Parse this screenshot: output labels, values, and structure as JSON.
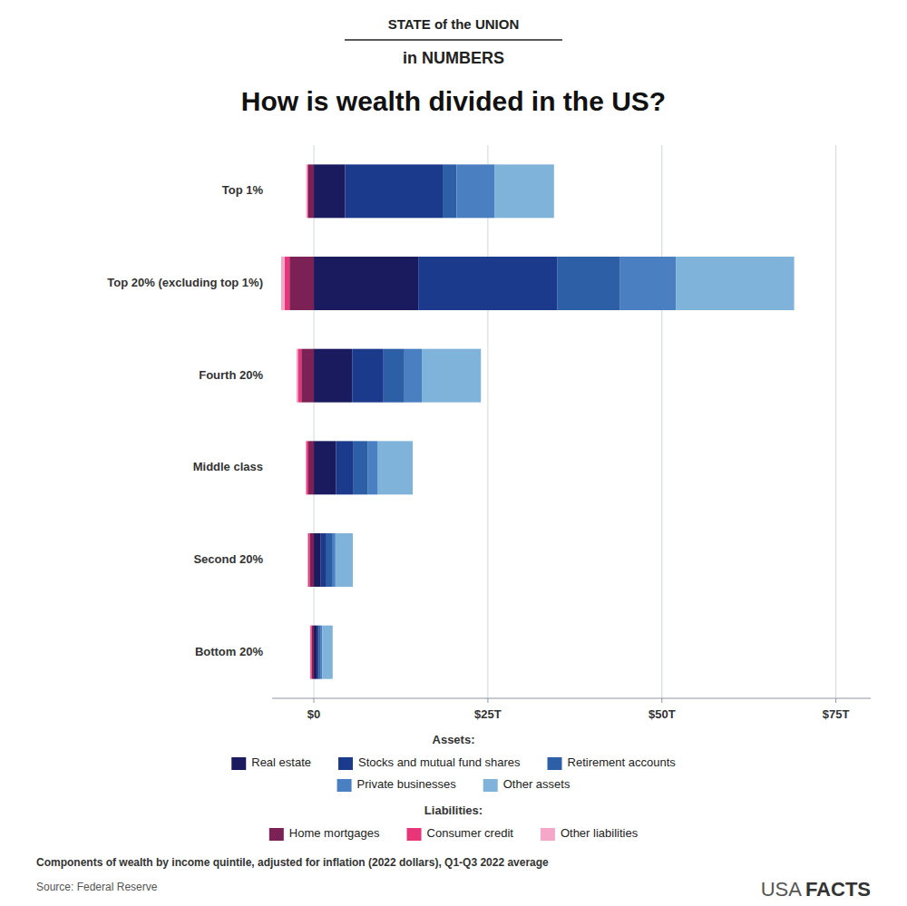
{
  "chart_data": {
    "type": "bar",
    "orientation": "horizontal",
    "stacked": true,
    "grid": true,
    "legend": "bottom",
    "title": "How is wealth divided in the US?",
    "subtitle": "Components of wealth by income quintile, adjusted for inflation (2022 dollars), Q1-Q3 2022 average",
    "annotations": [
      "STATE of the UNION",
      "in NUMBERS",
      "Assets:",
      "Liabilities:",
      "Source: Federal Reserve",
      "USA",
      "FACTS"
    ],
    "categories": [
      "Top 1%",
      "Top 20% (excluding top 1%)",
      "Fourth 20%",
      "Middle class",
      "Second 20%",
      "Bottom 20%"
    ],
    "xlim": [
      -6,
      80
    ],
    "xticks": [
      {
        "value": 0,
        "label": "$0"
      },
      {
        "value": 25,
        "label": "$25T"
      },
      {
        "value": 50,
        "label": "$50T"
      },
      {
        "value": 75,
        "label": "$75T"
      }
    ],
    "series": [
      {
        "name": "Real estate",
        "color": "#1a1a5e",
        "values": [
          4.5,
          15.0,
          5.5,
          3.2,
          1.0,
          0.4
        ]
      },
      {
        "name": "Stocks and mutual fund shares",
        "color": "#1b3a8c",
        "values": [
          14.0,
          20.0,
          4.5,
          2.5,
          0.8,
          0.3
        ]
      },
      {
        "name": "Retirement accounts",
        "color": "#2d5fa6",
        "values": [
          2.0,
          9.0,
          3.0,
          2.0,
          0.8,
          0.3
        ]
      },
      {
        "name": "Private businesses",
        "color": "#4a7fc1",
        "values": [
          5.5,
          8.0,
          2.5,
          1.5,
          0.5,
          0.2
        ]
      },
      {
        "name": "Other assets",
        "color": "#7fb3d9",
        "values": [
          8.5,
          17.0,
          8.5,
          5.0,
          2.5,
          1.5
        ]
      },
      {
        "name": "Home mortgages",
        "color": "#7b2155",
        "values": [
          -0.8,
          -3.5,
          -1.8,
          -0.8,
          -0.6,
          -0.3
        ]
      },
      {
        "name": "Consumer credit",
        "color": "#e8357a",
        "values": [
          -0.15,
          -0.7,
          -0.5,
          -0.3,
          -0.25,
          -0.2
        ]
      },
      {
        "name": "Other liabilities",
        "color": "#f4a7c7",
        "values": [
          -0.15,
          -0.5,
          -0.2,
          -0.1,
          -0.08,
          -0.05
        ]
      }
    ]
  }
}
